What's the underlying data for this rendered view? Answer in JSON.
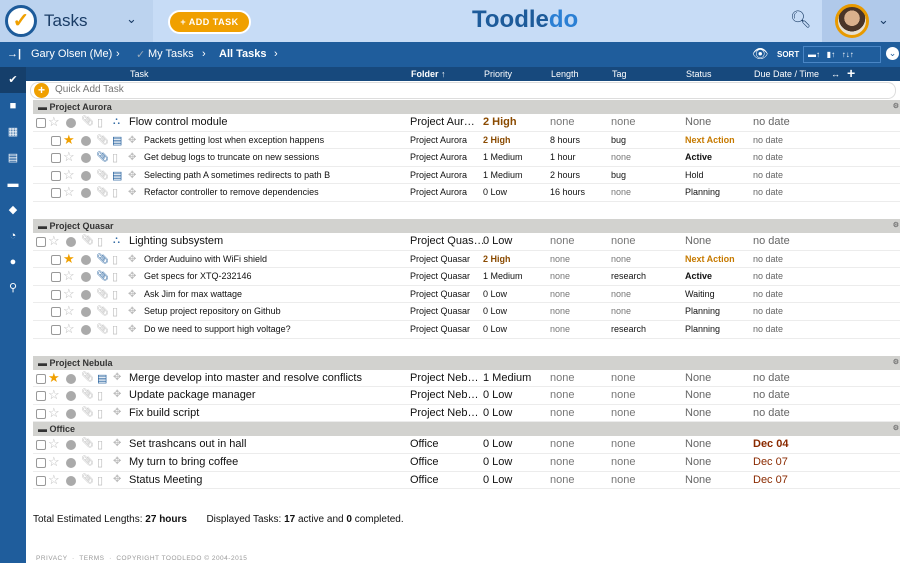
{
  "header": {
    "app_title": "Tasks",
    "add_task_label": "+ ADD TASK",
    "brand_a": "Toodle",
    "brand_b": "do"
  },
  "breadcrumb": {
    "items": [
      "Gary Olsen (Me)",
      "My Tasks",
      "All Tasks"
    ],
    "sort_label": "SORT"
  },
  "columns": {
    "task": "Task",
    "folder": "Folder ↑",
    "priority": "Priority",
    "length": "Length",
    "tag": "Tag",
    "status": "Status",
    "due": "Due Date / Time"
  },
  "quick_add": {
    "placeholder": "Quick Add Task"
  },
  "groups": [
    {
      "name": "Project Aurora",
      "tasks": [
        {
          "parent": true,
          "sub": true,
          "title": "Flow control module",
          "folder": "Project Aur…",
          "priority": "2 High",
          "length": "none",
          "tag": "none",
          "status": "None",
          "due": "no date"
        },
        {
          "star": true,
          "note": true,
          "title": "Packets getting lost when exception happens",
          "folder": "Project Aurora",
          "priority": "2 High",
          "length": "8 hours",
          "tag": "bug",
          "status": "Next Action",
          "due": "no date"
        },
        {
          "attach": true,
          "title": "Get debug logs to truncate on new sessions",
          "folder": "Project Aurora",
          "priority": "1 Medium",
          "length": "1 hour",
          "tag": "none",
          "status": "Active",
          "due": "no date"
        },
        {
          "note": true,
          "title": "Selecting path A sometimes redirects to path B",
          "folder": "Project Aurora",
          "priority": "1 Medium",
          "length": "2 hours",
          "tag": "bug",
          "status": "Hold",
          "due": "no date"
        },
        {
          "title": "Refactor controller to remove dependencies",
          "folder": "Project Aurora",
          "priority": "0 Low",
          "length": "16 hours",
          "tag": "none",
          "status": "Planning",
          "due": "no date"
        }
      ]
    },
    {
      "name": "Project Quasar",
      "tasks": [
        {
          "parent": true,
          "sub": true,
          "title": "Lighting subsystem",
          "folder": "Project Quas…",
          "priority": "0 Low",
          "length": "none",
          "tag": "none",
          "status": "None",
          "due": "no date"
        },
        {
          "star": true,
          "attach": true,
          "title": "Order Auduino with WiFi shield",
          "folder": "Project Quasar",
          "priority": "2 High",
          "length": "none",
          "tag": "none",
          "status": "Next Action",
          "due": "no date"
        },
        {
          "attach": true,
          "title": "Get specs for XTQ-232146",
          "folder": "Project Quasar",
          "priority": "1 Medium",
          "length": "none",
          "tag": "research",
          "status": "Active",
          "due": "no date"
        },
        {
          "title": "Ask Jim for max wattage",
          "folder": "Project Quasar",
          "priority": "0 Low",
          "length": "none",
          "tag": "none",
          "status": "Waiting",
          "due": "no date"
        },
        {
          "title": "Setup project repository on Github",
          "folder": "Project Quasar",
          "priority": "0 Low",
          "length": "none",
          "tag": "none",
          "status": "Planning",
          "due": "no date"
        },
        {
          "title": "Do we need to support high voltage?",
          "folder": "Project Quasar",
          "priority": "0 Low",
          "length": "none",
          "tag": "research",
          "status": "Planning",
          "due": "no date"
        }
      ]
    },
    {
      "name": "Project Nebula",
      "tasks": [
        {
          "parent": true,
          "star": true,
          "note": true,
          "title": "Merge develop into master and resolve conflicts",
          "folder": "Project Neb…",
          "priority": "1 Medium",
          "length": "none",
          "tag": "none",
          "status": "None",
          "due": "no date"
        },
        {
          "parent": true,
          "title": "Update package manager",
          "folder": "Project Neb…",
          "priority": "0 Low",
          "length": "none",
          "tag": "none",
          "status": "None",
          "due": "no date"
        },
        {
          "parent": true,
          "title": "Fix build script",
          "folder": "Project Neb…",
          "priority": "0 Low",
          "length": "none",
          "tag": "none",
          "status": "None",
          "due": "no date"
        }
      ]
    },
    {
      "name": "Office",
      "tasks": [
        {
          "parent": true,
          "title": "Set trashcans out in hall",
          "folder": "Office",
          "priority": "0 Low",
          "length": "none",
          "tag": "none",
          "status": "None",
          "due": "Dec 04",
          "due_bold": true
        },
        {
          "parent": true,
          "title": "My turn to bring coffee",
          "folder": "Office",
          "priority": "0 Low",
          "length": "none",
          "tag": "none",
          "status": "None",
          "due": "Dec 07"
        },
        {
          "parent": true,
          "title": "Status Meeting",
          "folder": "Office",
          "priority": "0 Low",
          "length": "none",
          "tag": "none",
          "status": "None",
          "due": "Dec 07"
        }
      ]
    }
  ],
  "footer": {
    "lengths_label": "Total Estimated Lengths:",
    "lengths_value": "27 hours",
    "displayed_label": "Displayed Tasks:",
    "active": "17",
    "active_suffix": "active and",
    "completed": "0",
    "completed_suffix": "completed."
  },
  "legal": {
    "privacy": "PRIVACY",
    "terms": "TERMS",
    "copyright": "COPYRIGHT TOODLEDO © 2004-2015"
  },
  "colors": {
    "accent": "#f0a000",
    "brand": "#1d5b9a",
    "high": "#8a4a00",
    "next_action": "#c67a00"
  }
}
